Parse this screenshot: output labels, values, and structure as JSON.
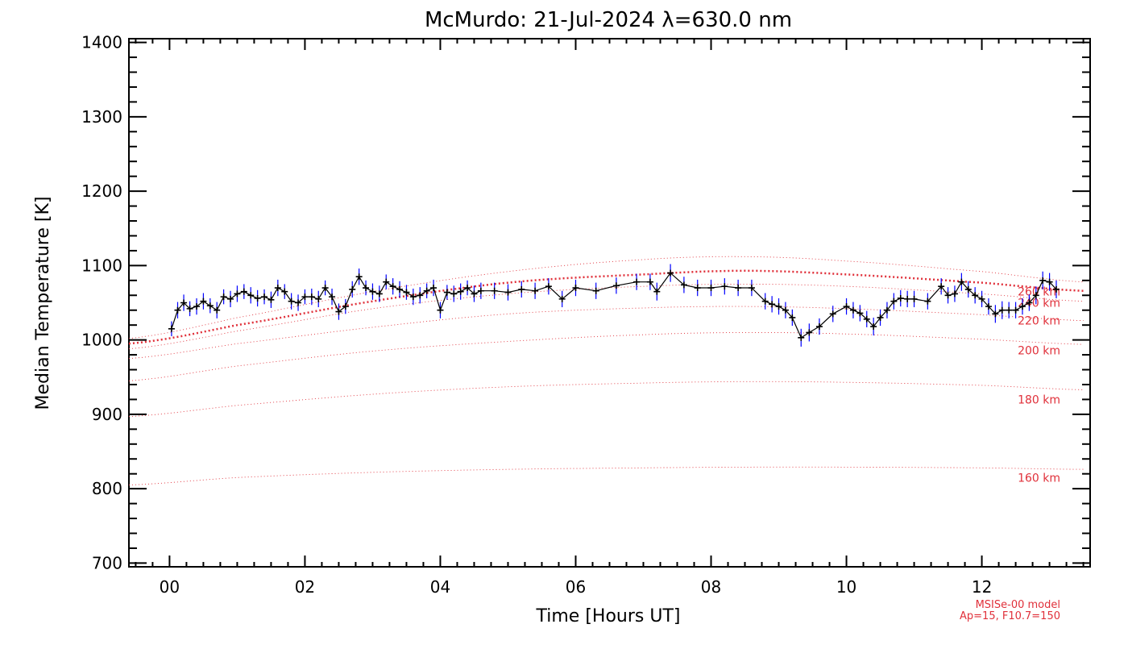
{
  "chart_data": {
    "type": "line",
    "title": "McMurdo: 21-Jul-2024 λ=630.0 nm",
    "xlabel": "Time [Hours UT]",
    "ylabel": "Median Temperature [K]",
    "xlim": [
      -0.6,
      13.6
    ],
    "ylim": [
      695,
      1405
    ],
    "xticks": [
      0,
      2,
      4,
      6,
      8,
      10,
      12
    ],
    "xtick_labels": [
      "00",
      "02",
      "04",
      "06",
      "08",
      "10",
      "12"
    ],
    "yticks": [
      700,
      800,
      900,
      1000,
      1100,
      1200,
      1300,
      1400
    ],
    "ytick_labels": [
      "700",
      "800",
      "900",
      "1000",
      "1100",
      "1200",
      "1300",
      "1400"
    ],
    "grid": false,
    "colors": {
      "data": "#000000",
      "error_bars": "#0000ff",
      "model": "#e0303a"
    },
    "measurement": {
      "x": [
        0.03,
        0.12,
        0.21,
        0.3,
        0.4,
        0.5,
        0.6,
        0.7,
        0.8,
        0.9,
        1.0,
        1.1,
        1.2,
        1.3,
        1.4,
        1.5,
        1.6,
        1.7,
        1.8,
        1.9,
        2.0,
        2.1,
        2.2,
        2.3,
        2.4,
        2.5,
        2.6,
        2.7,
        2.8,
        2.9,
        3.0,
        3.1,
        3.2,
        3.3,
        3.4,
        3.5,
        3.6,
        3.7,
        3.8,
        3.9,
        4.0,
        4.1,
        4.2,
        4.3,
        4.4,
        4.5,
        4.6,
        4.8,
        5.0,
        5.2,
        5.4,
        5.6,
        5.8,
        6.0,
        6.3,
        6.6,
        6.9,
        7.1,
        7.2,
        7.4,
        7.6,
        7.8,
        8.0,
        8.2,
        8.4,
        8.6,
        8.8,
        8.9,
        9.0,
        9.1,
        9.2,
        9.33,
        9.45,
        9.6,
        9.8,
        10.0,
        10.1,
        10.2,
        10.3,
        10.4,
        10.5,
        10.6,
        10.7,
        10.8,
        10.9,
        11.0,
        11.2,
        11.4,
        11.5,
        11.6,
        11.7,
        11.8,
        11.9,
        12.0,
        12.1,
        12.2,
        12.3,
        12.4,
        12.5,
        12.6,
        12.7,
        12.8,
        12.9,
        13.0,
        13.1
      ],
      "y": [
        1015,
        1040,
        1050,
        1042,
        1045,
        1052,
        1046,
        1040,
        1058,
        1055,
        1062,
        1065,
        1060,
        1056,
        1058,
        1054,
        1070,
        1065,
        1052,
        1050,
        1058,
        1058,
        1055,
        1070,
        1058,
        1038,
        1045,
        1068,
        1085,
        1070,
        1065,
        1062,
        1078,
        1072,
        1068,
        1064,
        1058,
        1060,
        1066,
        1070,
        1040,
        1064,
        1062,
        1065,
        1070,
        1062,
        1066,
        1066,
        1064,
        1068,
        1066,
        1072,
        1055,
        1070,
        1066,
        1073,
        1078,
        1078,
        1065,
        1090,
        1074,
        1070,
        1070,
        1072,
        1070,
        1070,
        1052,
        1048,
        1045,
        1040,
        1030,
        1003,
        1010,
        1018,
        1035,
        1045,
        1040,
        1036,
        1028,
        1018,
        1030,
        1040,
        1052,
        1056,
        1055,
        1055,
        1052,
        1072,
        1060,
        1062,
        1078,
        1068,
        1060,
        1055,
        1045,
        1035,
        1040,
        1040,
        1040,
        1045,
        1050,
        1060,
        1080,
        1078,
        1068
      ],
      "error": [
        10,
        11,
        11,
        10,
        11,
        11,
        10,
        11,
        10,
        11,
        11,
        10,
        11,
        11,
        10,
        11,
        11,
        10,
        11,
        11,
        10,
        11,
        11,
        10,
        11,
        11,
        10,
        11,
        11,
        10,
        11,
        11,
        10,
        11,
        11,
        10,
        11,
        11,
        10,
        11,
        11,
        10,
        11,
        11,
        10,
        11,
        11,
        11,
        11,
        11,
        11,
        11,
        11,
        11,
        11,
        11,
        11,
        11,
        12,
        12,
        11,
        11,
        11,
        11,
        11,
        11,
        11,
        11,
        11,
        11,
        11,
        12,
        12,
        11,
        11,
        11,
        11,
        11,
        11,
        12,
        11,
        11,
        11,
        11,
        11,
        11,
        11,
        11,
        11,
        11,
        12,
        11,
        11,
        11,
        11,
        12,
        12,
        11,
        11,
        11,
        11,
        12,
        12,
        12,
        12
      ]
    },
    "model": {
      "name": "MSISe-00 model",
      "parameters": "Ap=15, F10.7=150",
      "x": [
        -0.6,
        1,
        3,
        5,
        7,
        8.5,
        10,
        12,
        13.5
      ],
      "curves": [
        {
          "label": "260 km",
          "y": [
            1002,
            1030,
            1065,
            1092,
            1108,
            1112,
            1106,
            1092,
            1078
          ],
          "emphasis": false
        },
        {
          "label": "250 km",
          "y": [
            995,
            1020,
            1052,
            1077,
            1088,
            1093,
            1088,
            1077,
            1066
          ],
          "emphasis": true
        },
        {
          "label": "240 km",
          "y": [
            988,
            1012,
            1042,
            1062,
            1072,
            1075,
            1072,
            1062,
            1052
          ],
          "emphasis": false
        },
        {
          "label": "220 km",
          "y": [
            975,
            995,
            1017,
            1035,
            1043,
            1045,
            1042,
            1034,
            1026
          ],
          "emphasis": false
        },
        {
          "label": "200 km",
          "y": [
            945,
            965,
            985,
            998,
            1007,
            1010,
            1008,
            1001,
            994
          ],
          "emphasis": false
        },
        {
          "label": "180 km",
          "y": [
            897,
            912,
            927,
            937,
            942,
            944,
            943,
            939,
            933
          ],
          "emphasis": false
        },
        {
          "label": "160 km",
          "y": [
            805,
            815,
            822,
            826,
            828,
            829,
            829,
            828,
            826
          ],
          "emphasis": false
        }
      ],
      "label_positions_y": [
        1065,
        1050,
        1026,
        986,
        920,
        815
      ]
    }
  }
}
